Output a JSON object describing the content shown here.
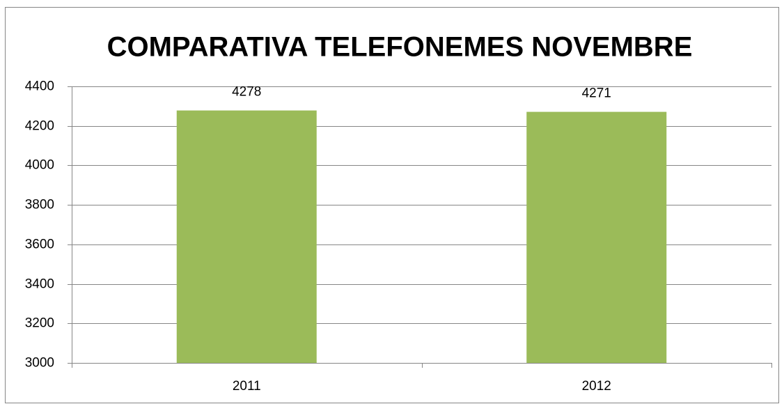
{
  "chart_data": {
    "type": "bar",
    "title": "COMPARATIVA TELEFONEMES NOVEMBRE",
    "categories": [
      "2011",
      "2012"
    ],
    "values": [
      4278,
      4271
    ],
    "color": "#9bbb59",
    "ylim": [
      3000,
      4400
    ],
    "yticks": [
      3000,
      3200,
      3400,
      3600,
      3800,
      4000,
      4200,
      4400
    ],
    "grid": true
  }
}
